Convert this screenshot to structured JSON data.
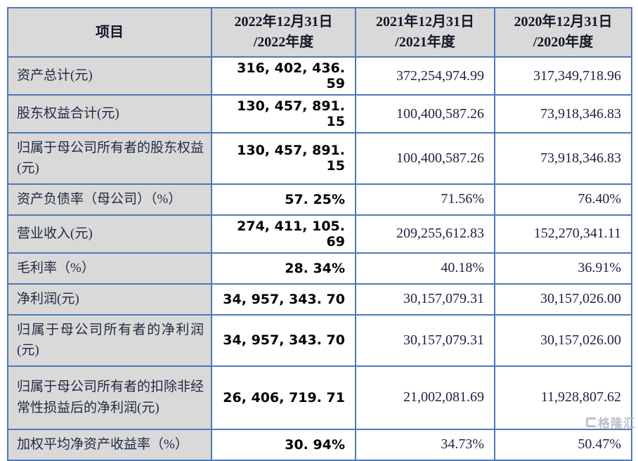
{
  "colors": {
    "table_border": "#4d79b6",
    "header_bg": "#d9d9d9",
    "label_column_bg": "#d9d9d9",
    "value_bold_text": "#000000",
    "value_serif_text": "#1c2340",
    "watermark_gray": "#b4b7bd"
  },
  "table": {
    "header": {
      "item": "项目",
      "cols": [
        {
          "line1": "2022年12月31日",
          "line2": "/2022年度"
        },
        {
          "line1": "2021年12月31日",
          "line2": "/2021年度"
        },
        {
          "line1": "2020年12月31日",
          "line2": "/2020年度"
        }
      ]
    },
    "rows": [
      {
        "label": "资产总计(元)",
        "y2022": "316, 402, 436. 59",
        "y2021": "372,254,974.99",
        "y2020": "317,349,718.96"
      },
      {
        "label": "股东权益合计(元)",
        "y2022": "130, 457, 891. 15",
        "y2021": "100,400,587.26",
        "y2020": "73,918,346.83"
      },
      {
        "label": "归属于母公司所有者的股东权益(元)",
        "y2022": "130, 457, 891. 15",
        "y2021": "100,400,587.26",
        "y2020": "73,918,346.83"
      },
      {
        "label": "资产负债率（母公司）（%）",
        "y2022": "57. 25%",
        "y2021": "71.56%",
        "y2020": "76.40%"
      },
      {
        "label": "营业收入(元)",
        "y2022": "274, 411, 105. 69",
        "y2021": "209,255,612.83",
        "y2020": "152,270,341.11"
      },
      {
        "label": "毛利率（%）",
        "y2022": "28. 34%",
        "y2021": "40.18%",
        "y2020": "36.91%"
      },
      {
        "label": "净利润(元)",
        "y2022": "34, 957, 343. 70",
        "y2021": "30,157,079.31",
        "y2020": "30,157,026.00"
      },
      {
        "label": "归属于母公司所有者的净利润(元)",
        "y2022": "34, 957, 343. 70",
        "y2021": "30,157,079.31",
        "y2020": "30,157,026.00"
      },
      {
        "label": "归属于母公司所有者的扣除非经常性损益后的净利润(元)",
        "y2022": "26, 406, 719. 71",
        "y2021": "21,002,081.69",
        "y2020": "11,928,807.62"
      },
      {
        "label": "加权平均净资产收益率（%）",
        "y2022": "30. 94%",
        "y2021": "34.73%",
        "y2020": "50.47%"
      }
    ]
  },
  "watermark": {
    "brand": "格隆汇"
  }
}
